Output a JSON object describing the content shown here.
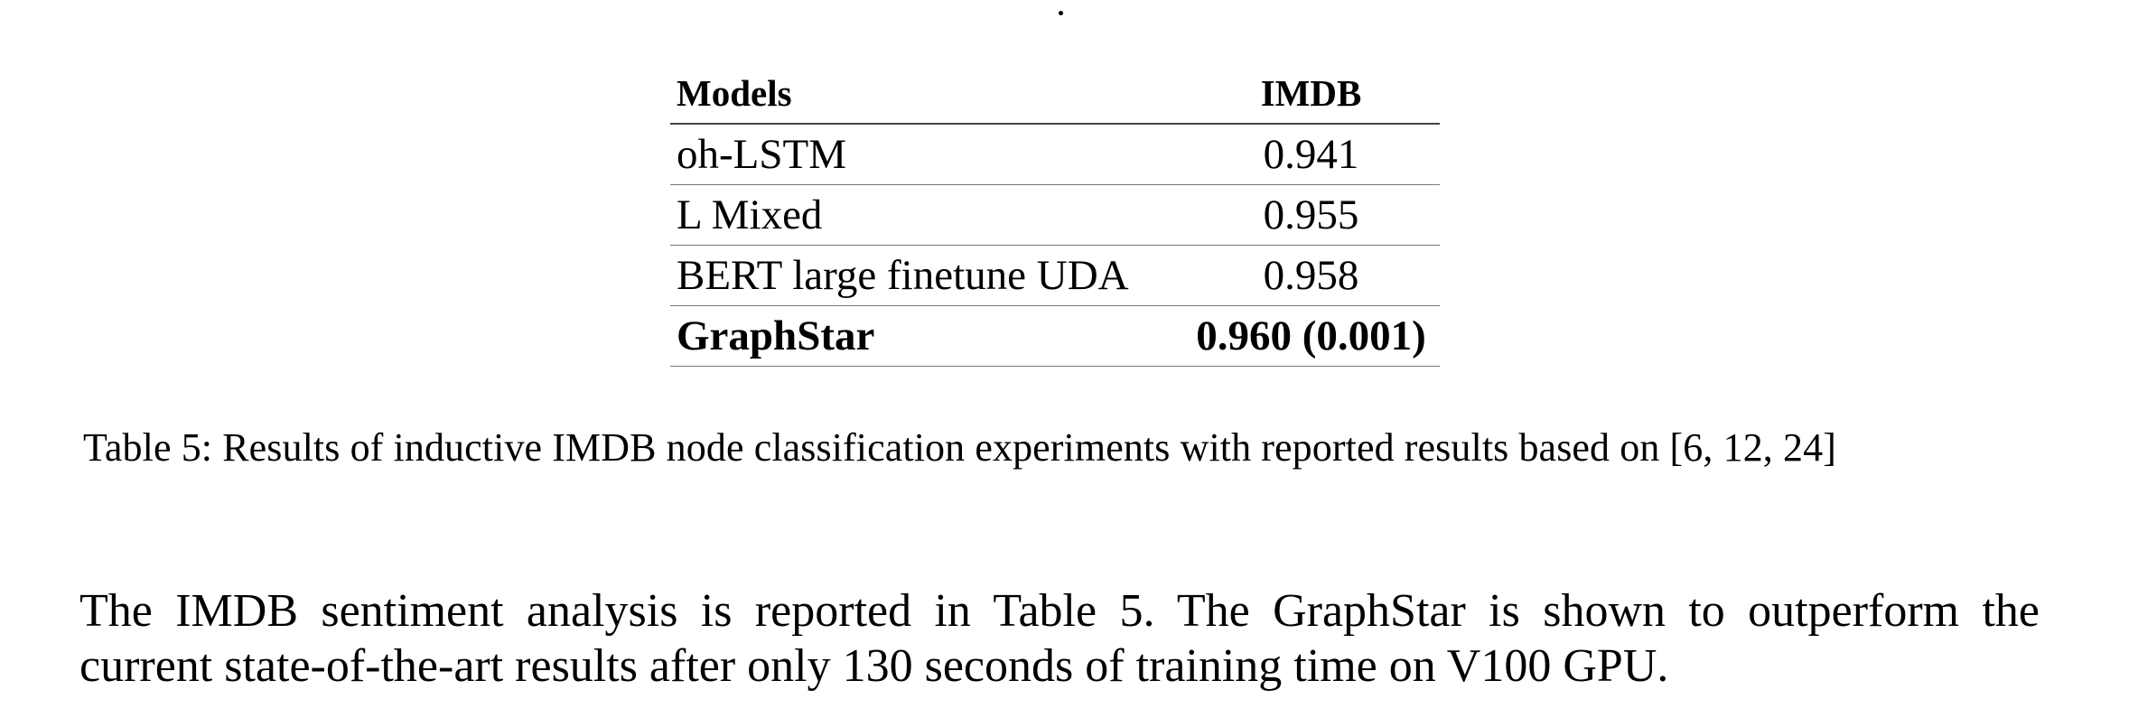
{
  "table": {
    "headers": [
      "Models",
      "IMDB"
    ],
    "rows": [
      {
        "model": "oh-LSTM",
        "imdb": "0.941",
        "bold": false
      },
      {
        "model": "L Mixed",
        "imdb": "0.955",
        "bold": false
      },
      {
        "model": "BERT large finetune UDA",
        "imdb": "0.958",
        "bold": false
      },
      {
        "model": "GraphStar",
        "imdb": "0.960 (0.001)",
        "bold": true
      }
    ]
  },
  "caption": "Table 5:  Results of inductive IMDB node classification experiments with reported results based on [6, 12, 24]",
  "paragraph": {
    "line1": "The IMDB sentiment analysis is reported in Table 5.  The GraphStar is shown to outperform the",
    "line2": "current state-of-the-art results after only 130 seconds of training time on V100 GPU."
  }
}
